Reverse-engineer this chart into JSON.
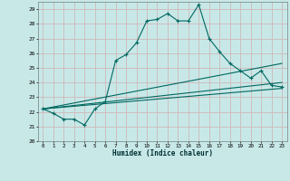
{
  "title": "",
  "xlabel": "Humidex (Indice chaleur)",
  "bg_color": "#c8e8e8",
  "grid_color": "#d0b8b8",
  "line_color": "#006860",
  "xlim": [
    -0.5,
    23.5
  ],
  "ylim": [
    20,
    29.5
  ],
  "yticks": [
    20,
    21,
    22,
    23,
    24,
    25,
    26,
    27,
    28,
    29
  ],
  "xticks": [
    0,
    1,
    2,
    3,
    4,
    5,
    6,
    7,
    8,
    9,
    10,
    11,
    12,
    13,
    14,
    15,
    16,
    17,
    18,
    19,
    20,
    21,
    22,
    23
  ],
  "line1_x": [
    0,
    1,
    2,
    3,
    4,
    5,
    6,
    7,
    8,
    9,
    10,
    11,
    12,
    13,
    14,
    15,
    16,
    17,
    18,
    19,
    20,
    21,
    22,
    23
  ],
  "line1_y": [
    22.2,
    21.9,
    21.5,
    21.5,
    21.1,
    22.2,
    22.7,
    25.5,
    25.9,
    26.7,
    28.2,
    28.3,
    28.7,
    28.2,
    28.2,
    29.3,
    27.0,
    26.1,
    25.3,
    24.8,
    24.3,
    24.8,
    23.8,
    23.7
  ],
  "line2_x": [
    0,
    23
  ],
  "line2_y": [
    22.2,
    25.3
  ],
  "line3_x": [
    0,
    23
  ],
  "line3_y": [
    22.2,
    24.0
  ],
  "line4_x": [
    0,
    23
  ],
  "line4_y": [
    22.2,
    23.6
  ]
}
